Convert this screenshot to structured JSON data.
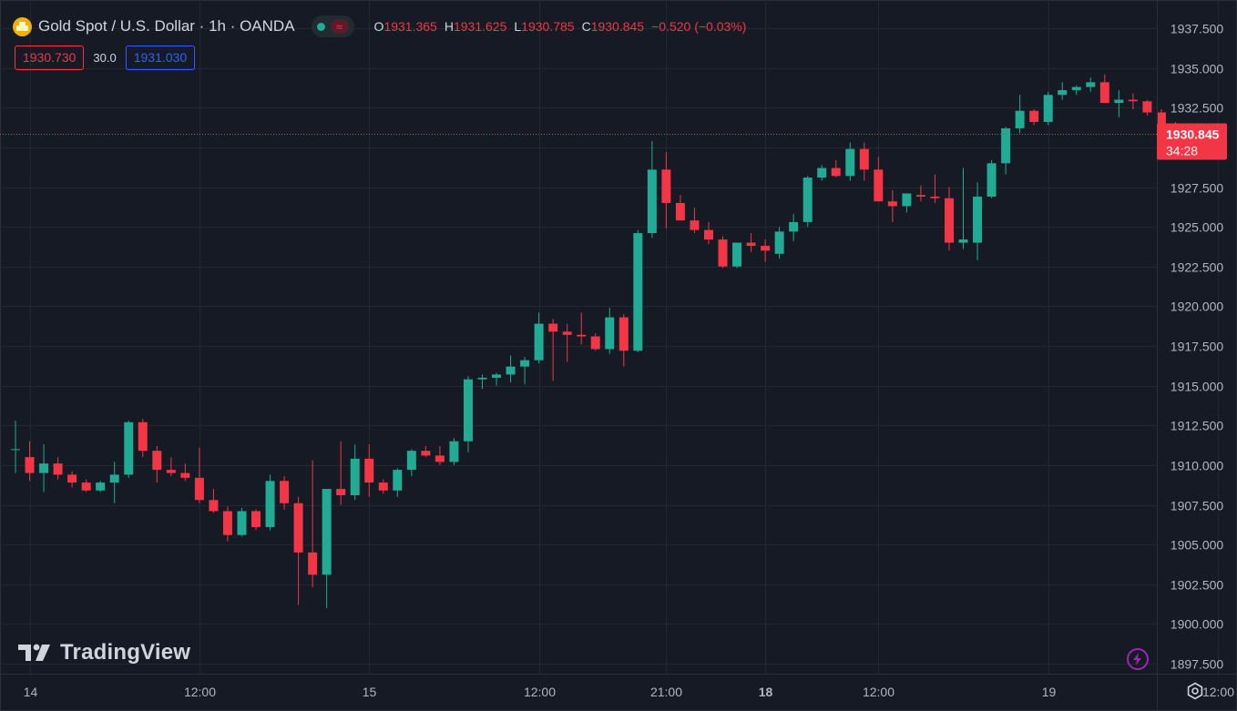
{
  "header": {
    "symbol_title": "Gold Spot / U.S. Dollar · 1h · OANDA",
    "ohlc": {
      "o_label": "O",
      "o_value": "1931.365",
      "h_label": "H",
      "h_value": "1931.625",
      "l_label": "L",
      "l_value": "1930.785",
      "c_label": "C",
      "c_value": "1930.845",
      "change": "−0.520 (−0.03%)"
    },
    "sell_price": "1930.730",
    "spread": "30.0",
    "buy_price": "1931.030"
  },
  "watermark": {
    "text": "TradingView"
  },
  "icons": {
    "symbol": "gold-coin-icon",
    "status": "market-status-icon",
    "bolt": "bolt-icon",
    "settings": "settings-icon"
  },
  "colors": {
    "background": "#161a25",
    "grid": "#232734",
    "up": "#22ab94",
    "down": "#f23645",
    "text": "#d1d4dc",
    "axis_text": "#b2b5be",
    "buy": "#2962ff"
  },
  "chart_data": {
    "type": "candlestick",
    "title": "Gold Spot / U.S. Dollar · 1h · OANDA",
    "interval": "1h",
    "ylim": [
      1897.5,
      1938.2
    ],
    "y_ticks": [
      1937.5,
      1935.0,
      1932.5,
      1930.0,
      1927.5,
      1925.0,
      1922.5,
      1920.0,
      1917.5,
      1915.0,
      1912.5,
      1910.0,
      1907.5,
      1905.0,
      1902.5,
      1900.0,
      1897.5
    ],
    "y_tick_labels": [
      "1937.500",
      "1935.000",
      "1932.500",
      "1930.000",
      "1927.500",
      "1925.000",
      "1922.500",
      "1920.000",
      "1917.500",
      "1915.000",
      "1912.500",
      "1910.000",
      "1907.500",
      "1905.000",
      "1902.500",
      "1900.000",
      "1897.500"
    ],
    "x_ticks": [
      {
        "label": "14",
        "bar": 1,
        "bold": false
      },
      {
        "label": "12:00",
        "bar": 13,
        "bold": false
      },
      {
        "label": "15",
        "bar": 25,
        "bold": false
      },
      {
        "label": "12:00",
        "bar": 37,
        "bold": false
      },
      {
        "label": "21:00",
        "bar": 46,
        "bold": false
      },
      {
        "label": "18",
        "bar": 53,
        "bold": true
      },
      {
        "label": "12:00",
        "bar": 61,
        "bold": false
      },
      {
        "label": "19",
        "bar": 73,
        "bold": false
      },
      {
        "label": "12:00",
        "bar": 85,
        "bold": false
      }
    ],
    "last_price": 1930.845,
    "last_price_label": "1930.845",
    "countdown": "34:28",
    "candles": [
      {
        "o": 1911.0,
        "h": 1912.8,
        "l": 1909.5,
        "c": 1911.0
      },
      {
        "o": 1910.5,
        "h": 1911.5,
        "l": 1909.0,
        "c": 1909.5
      },
      {
        "o": 1909.5,
        "h": 1911.3,
        "l": 1908.3,
        "c": 1910.1
      },
      {
        "o": 1910.1,
        "h": 1910.5,
        "l": 1909.1,
        "c": 1909.4
      },
      {
        "o": 1909.4,
        "h": 1909.6,
        "l": 1908.6,
        "c": 1908.9
      },
      {
        "o": 1908.9,
        "h": 1909.1,
        "l": 1908.3,
        "c": 1908.4
      },
      {
        "o": 1908.4,
        "h": 1909.0,
        "l": 1908.3,
        "c": 1908.9
      },
      {
        "o": 1908.9,
        "h": 1910.2,
        "l": 1907.6,
        "c": 1909.4
      },
      {
        "o": 1909.4,
        "h": 1912.8,
        "l": 1909.2,
        "c": 1912.7
      },
      {
        "o": 1912.7,
        "h": 1912.9,
        "l": 1910.5,
        "c": 1910.9
      },
      {
        "o": 1910.9,
        "h": 1911.2,
        "l": 1908.9,
        "c": 1909.7
      },
      {
        "o": 1909.7,
        "h": 1910.5,
        "l": 1909.3,
        "c": 1909.5
      },
      {
        "o": 1909.5,
        "h": 1910.1,
        "l": 1909.0,
        "c": 1909.2
      },
      {
        "o": 1909.2,
        "h": 1911.1,
        "l": 1907.6,
        "c": 1907.8
      },
      {
        "o": 1907.8,
        "h": 1908.5,
        "l": 1907.0,
        "c": 1907.1
      },
      {
        "o": 1907.1,
        "h": 1907.4,
        "l": 1905.2,
        "c": 1905.6
      },
      {
        "o": 1905.6,
        "h": 1907.3,
        "l": 1905.5,
        "c": 1907.1
      },
      {
        "o": 1907.1,
        "h": 1907.2,
        "l": 1905.9,
        "c": 1906.1
      },
      {
        "o": 1906.1,
        "h": 1909.4,
        "l": 1905.9,
        "c": 1909.0
      },
      {
        "o": 1909.0,
        "h": 1909.3,
        "l": 1907.2,
        "c": 1907.6
      },
      {
        "o": 1907.6,
        "h": 1908.0,
        "l": 1901.2,
        "c": 1904.5
      },
      {
        "o": 1904.5,
        "h": 1910.3,
        "l": 1902.3,
        "c": 1903.1
      },
      {
        "o": 1903.1,
        "h": 1908.4,
        "l": 1901.0,
        "c": 1908.5
      },
      {
        "o": 1908.5,
        "h": 1911.5,
        "l": 1907.5,
        "c": 1908.1
      },
      {
        "o": 1908.1,
        "h": 1911.3,
        "l": 1907.8,
        "c": 1910.4
      },
      {
        "o": 1910.4,
        "h": 1911.3,
        "l": 1908.0,
        "c": 1908.9
      },
      {
        "o": 1908.9,
        "h": 1909.1,
        "l": 1908.2,
        "c": 1908.4
      },
      {
        "o": 1908.4,
        "h": 1909.8,
        "l": 1908.0,
        "c": 1909.7
      },
      {
        "o": 1909.7,
        "h": 1911.0,
        "l": 1909.3,
        "c": 1910.9
      },
      {
        "o": 1910.9,
        "h": 1911.2,
        "l": 1910.5,
        "c": 1910.6
      },
      {
        "o": 1910.6,
        "h": 1911.2,
        "l": 1910.0,
        "c": 1910.2
      },
      {
        "o": 1910.2,
        "h": 1911.7,
        "l": 1910.0,
        "c": 1911.5
      },
      {
        "o": 1911.5,
        "h": 1915.6,
        "l": 1910.8,
        "c": 1915.4
      },
      {
        "o": 1915.4,
        "h": 1915.7,
        "l": 1914.8,
        "c": 1915.5
      },
      {
        "o": 1915.5,
        "h": 1915.8,
        "l": 1915.0,
        "c": 1915.7
      },
      {
        "o": 1915.7,
        "h": 1916.9,
        "l": 1915.2,
        "c": 1916.2
      },
      {
        "o": 1916.2,
        "h": 1916.8,
        "l": 1915.1,
        "c": 1916.6
      },
      {
        "o": 1916.6,
        "h": 1919.6,
        "l": 1916.4,
        "c": 1918.9
      },
      {
        "o": 1918.9,
        "h": 1919.2,
        "l": 1915.3,
        "c": 1918.4
      },
      {
        "o": 1918.4,
        "h": 1918.9,
        "l": 1916.5,
        "c": 1918.2
      },
      {
        "o": 1918.2,
        "h": 1919.6,
        "l": 1917.6,
        "c": 1918.1
      },
      {
        "o": 1918.1,
        "h": 1918.3,
        "l": 1917.2,
        "c": 1917.3
      },
      {
        "o": 1917.3,
        "h": 1919.9,
        "l": 1917.0,
        "c": 1919.3
      },
      {
        "o": 1919.3,
        "h": 1919.5,
        "l": 1916.2,
        "c": 1917.2
      },
      {
        "o": 1917.2,
        "h": 1924.8,
        "l": 1917.1,
        "c": 1924.6
      },
      {
        "o": 1924.6,
        "h": 1930.4,
        "l": 1924.3,
        "c": 1928.6
      },
      {
        "o": 1928.6,
        "h": 1929.7,
        "l": 1924.9,
        "c": 1926.5
      },
      {
        "o": 1926.5,
        "h": 1927.0,
        "l": 1925.4,
        "c": 1925.4
      },
      {
        "o": 1925.4,
        "h": 1926.2,
        "l": 1924.6,
        "c": 1924.8
      },
      {
        "o": 1924.8,
        "h": 1925.3,
        "l": 1923.9,
        "c": 1924.2
      },
      {
        "o": 1924.2,
        "h": 1924.4,
        "l": 1922.4,
        "c": 1922.5
      },
      {
        "o": 1922.5,
        "h": 1924.0,
        "l": 1922.4,
        "c": 1924.0
      },
      {
        "o": 1924.0,
        "h": 1924.6,
        "l": 1923.4,
        "c": 1923.8
      },
      {
        "o": 1923.8,
        "h": 1924.2,
        "l": 1922.8,
        "c": 1923.5
      },
      {
        "o": 1923.3,
        "h": 1925.0,
        "l": 1923.0,
        "c": 1924.7
      },
      {
        "o": 1924.7,
        "h": 1925.8,
        "l": 1924.1,
        "c": 1925.3
      },
      {
        "o": 1925.3,
        "h": 1928.2,
        "l": 1925.0,
        "c": 1928.1
      },
      {
        "o": 1928.1,
        "h": 1928.9,
        "l": 1927.9,
        "c": 1928.7
      },
      {
        "o": 1928.7,
        "h": 1929.2,
        "l": 1928.1,
        "c": 1928.2
      },
      {
        "o": 1928.2,
        "h": 1930.3,
        "l": 1927.9,
        "c": 1929.9
      },
      {
        "o": 1929.9,
        "h": 1930.3,
        "l": 1927.9,
        "c": 1928.6
      },
      {
        "o": 1928.6,
        "h": 1929.4,
        "l": 1926.6,
        "c": 1926.6
      },
      {
        "o": 1926.6,
        "h": 1927.3,
        "l": 1925.3,
        "c": 1926.3
      },
      {
        "o": 1926.3,
        "h": 1927.1,
        "l": 1925.9,
        "c": 1927.1
      },
      {
        "o": 1927.0,
        "h": 1927.6,
        "l": 1926.6,
        "c": 1926.9
      },
      {
        "o": 1926.9,
        "h": 1928.3,
        "l": 1926.5,
        "c": 1926.8
      },
      {
        "o": 1926.8,
        "h": 1927.5,
        "l": 1923.5,
        "c": 1924.0
      },
      {
        "o": 1924.0,
        "h": 1928.7,
        "l": 1923.6,
        "c": 1924.2
      },
      {
        "o": 1924.0,
        "h": 1927.8,
        "l": 1922.9,
        "c": 1926.9
      },
      {
        "o": 1926.9,
        "h": 1929.2,
        "l": 1926.8,
        "c": 1929.0
      },
      {
        "o": 1929.0,
        "h": 1931.3,
        "l": 1928.3,
        "c": 1931.2
      },
      {
        "o": 1931.2,
        "h": 1933.3,
        "l": 1930.9,
        "c": 1932.3
      },
      {
        "o": 1932.3,
        "h": 1932.4,
        "l": 1931.4,
        "c": 1931.6
      },
      {
        "o": 1931.6,
        "h": 1933.5,
        "l": 1931.4,
        "c": 1933.3
      },
      {
        "o": 1933.3,
        "h": 1934.1,
        "l": 1933.0,
        "c": 1933.6
      },
      {
        "o": 1933.6,
        "h": 1933.9,
        "l": 1933.3,
        "c": 1933.8
      },
      {
        "o": 1933.8,
        "h": 1934.4,
        "l": 1933.5,
        "c": 1934.1
      },
      {
        "o": 1934.1,
        "h": 1934.6,
        "l": 1932.8,
        "c": 1932.8
      },
      {
        "o": 1932.8,
        "h": 1933.6,
        "l": 1931.9,
        "c": 1933.0
      },
      {
        "o": 1933.0,
        "h": 1933.4,
        "l": 1932.4,
        "c": 1932.9
      },
      {
        "o": 1932.9,
        "h": 1933.0,
        "l": 1932.0,
        "c": 1932.2
      },
      {
        "o": 1932.2,
        "h": 1932.4,
        "l": 1931.3,
        "c": 1931.4
      },
      {
        "o": 1931.4,
        "h": 1931.6,
        "l": 1930.8,
        "c": 1930.8
      }
    ]
  }
}
